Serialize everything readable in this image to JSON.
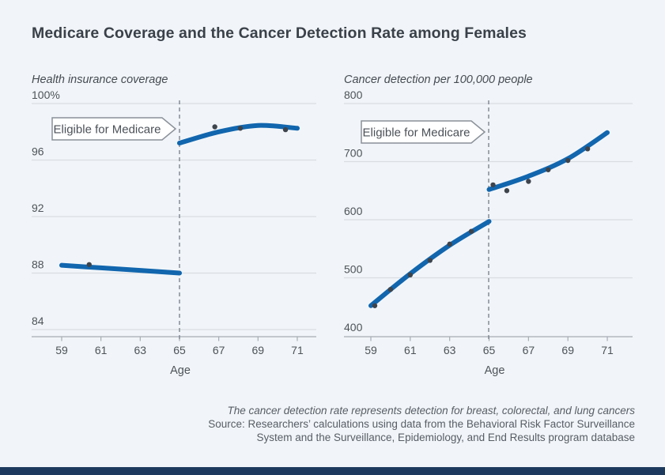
{
  "title": "Medicare Coverage and the Cancer Detection Rate among Females",
  "callout_label": "Eligible for Medicare",
  "footer": {
    "note": "The cancer detection rate represents detection for breast, colorectal, and lung cancers",
    "source_line1": "Source: Researchers’ calculations using data from the Behavioral Risk Factor Surveillance",
    "source_line2": "System and the Surveillance, Epidemiology, and End Results program database"
  },
  "colors": {
    "background": "#f1f5f9",
    "line_blue": "#1166ae",
    "scatter_dot": "#3e444c",
    "gridline": "#d9dde2",
    "axis": "#a6acb3",
    "dashed_line": "#7e858e",
    "title_text": "#3a4149",
    "label_text": "#4d5359",
    "callout_border": "#8a9099",
    "callout_fill": "#ffffff",
    "bottom_bar": "#1d3a5e"
  },
  "chart_data": [
    {
      "type": "line",
      "title": "Health insurance coverage",
      "xlabel": "Age",
      "ylabel": "Health insurance coverage (%)",
      "x_ticks": [
        59,
        61,
        63,
        65,
        67,
        69,
        71
      ],
      "y_ticks": [
        "100%",
        "96",
        "92",
        "88",
        "84"
      ],
      "y_tick_values": [
        100,
        96,
        92,
        88,
        84
      ],
      "ylim": [
        84,
        100
      ],
      "xlim": [
        59,
        71
      ],
      "grid": true,
      "legend": "none",
      "annotation": "Eligible for Medicare",
      "discontinuity_at": 65,
      "series": [
        {
          "name": "fit-before-65",
          "x": [
            59,
            61,
            63,
            65
          ],
          "y": [
            88.55,
            88.37,
            88.19,
            88.0
          ]
        },
        {
          "name": "fit-after-65",
          "x": [
            65,
            67,
            69,
            71
          ],
          "y": [
            97.2,
            98.0,
            98.45,
            98.25
          ]
        }
      ],
      "scatter": [
        {
          "x": 60.4,
          "y": 88.6
        },
        {
          "x": 66.8,
          "y": 98.35
        },
        {
          "x": 68.1,
          "y": 98.25
        },
        {
          "x": 70.4,
          "y": 98.15
        }
      ]
    },
    {
      "type": "line",
      "title": "Cancer detection per 100,000 people",
      "xlabel": "Age",
      "ylabel": "Cancer detection per 100,000 people",
      "x_ticks": [
        59,
        61,
        63,
        65,
        67,
        69,
        71
      ],
      "y_ticks": [
        "800",
        "700",
        "600",
        "500",
        "400"
      ],
      "y_tick_values": [
        800,
        700,
        600,
        500,
        400
      ],
      "ylim": [
        400,
        800
      ],
      "xlim": [
        59,
        71
      ],
      "grid": true,
      "legend": "none",
      "annotation": "Eligible for Medicare",
      "discontinuity_at": 65,
      "series": [
        {
          "name": "fit-before-65",
          "x": [
            59,
            61,
            63,
            65
          ],
          "y": [
            452,
            507,
            556,
            597
          ]
        },
        {
          "name": "fit-after-65",
          "x": [
            65,
            67,
            69,
            71
          ],
          "y": [
            652,
            675,
            705,
            750
          ]
        }
      ],
      "scatter": [
        {
          "x": 59.2,
          "y": 452
        },
        {
          "x": 60.0,
          "y": 480
        },
        {
          "x": 61.0,
          "y": 505
        },
        {
          "x": 62.0,
          "y": 530
        },
        {
          "x": 63.0,
          "y": 558
        },
        {
          "x": 64.1,
          "y": 580
        },
        {
          "x": 65.2,
          "y": 660
        },
        {
          "x": 65.9,
          "y": 650
        },
        {
          "x": 67.0,
          "y": 666
        },
        {
          "x": 68.0,
          "y": 686
        },
        {
          "x": 69.0,
          "y": 702
        },
        {
          "x": 70.0,
          "y": 722
        }
      ]
    }
  ]
}
